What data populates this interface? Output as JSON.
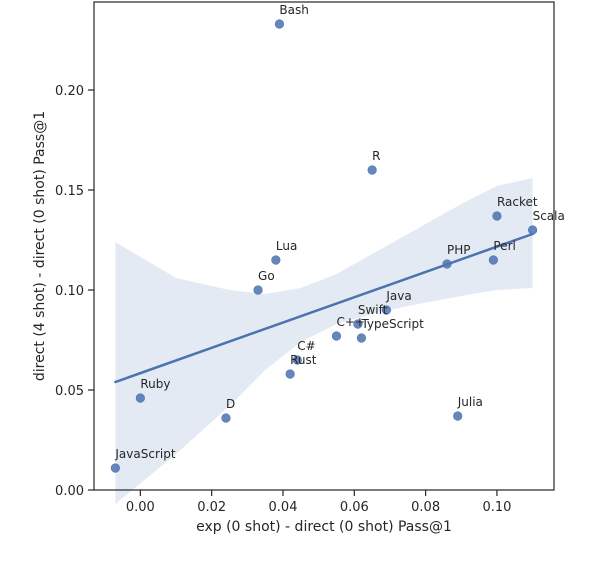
{
  "chart_data": {
    "type": "scatter",
    "xlabel": "exp (0 shot) - direct (0 shot) Pass@1",
    "ylabel": "direct (4 shot) - direct (0 shot) Pass@1",
    "xlim": [
      -0.013,
      0.116
    ],
    "ylim": [
      0.0,
      0.244
    ],
    "xticks": [
      0.0,
      0.02,
      0.04,
      0.06,
      0.08,
      0.1
    ],
    "xtick_labels": [
      "0.00",
      "0.02",
      "0.04",
      "0.06",
      "0.08",
      "0.10"
    ],
    "yticks": [
      0.0,
      0.05,
      0.1,
      0.15,
      0.2
    ],
    "ytick_labels": [
      "0.00",
      "0.05",
      "0.10",
      "0.15",
      "0.20"
    ],
    "grid": false,
    "point_color": "#4c72b0",
    "regression": {
      "x_start": -0.007,
      "y_start": 0.054,
      "x_end": 0.11,
      "y_end": 0.128,
      "line_color": "#4c72b0",
      "band_color": "#4c72b0",
      "band": [
        {
          "x": -0.007,
          "lo": -0.007,
          "hi": 0.124
        },
        {
          "x": 0.01,
          "lo": 0.018,
          "hi": 0.106
        },
        {
          "x": 0.025,
          "lo": 0.042,
          "hi": 0.1
        },
        {
          "x": 0.035,
          "lo": 0.06,
          "hi": 0.098
        },
        {
          "x": 0.045,
          "lo": 0.074,
          "hi": 0.101
        },
        {
          "x": 0.055,
          "lo": 0.083,
          "hi": 0.108
        },
        {
          "x": 0.065,
          "lo": 0.088,
          "hi": 0.118
        },
        {
          "x": 0.075,
          "lo": 0.092,
          "hi": 0.128
        },
        {
          "x": 0.09,
          "lo": 0.097,
          "hi": 0.143
        },
        {
          "x": 0.1,
          "lo": 0.1,
          "hi": 0.152
        },
        {
          "x": 0.11,
          "lo": 0.101,
          "hi": 0.156
        }
      ]
    },
    "points": [
      {
        "label": "Bash",
        "x": 0.039,
        "y": 0.233
      },
      {
        "label": "R",
        "x": 0.065,
        "y": 0.16
      },
      {
        "label": "Racket",
        "x": 0.1,
        "y": 0.137
      },
      {
        "label": "Scala",
        "x": 0.11,
        "y": 0.13
      },
      {
        "label": "Lua",
        "x": 0.038,
        "y": 0.115
      },
      {
        "label": "PHP",
        "x": 0.086,
        "y": 0.113
      },
      {
        "label": "Perl",
        "x": 0.099,
        "y": 0.115
      },
      {
        "label": "Go",
        "x": 0.033,
        "y": 0.1
      },
      {
        "label": "Java",
        "x": 0.069,
        "y": 0.09
      },
      {
        "label": "Swift",
        "x": 0.061,
        "y": 0.083
      },
      {
        "label": "C++",
        "x": 0.055,
        "y": 0.077
      },
      {
        "label": "TypeScript",
        "x": 0.062,
        "y": 0.076
      },
      {
        "label": "C#",
        "x": 0.044,
        "y": 0.065
      },
      {
        "label": "Rust",
        "x": 0.042,
        "y": 0.058
      },
      {
        "label": "Ruby",
        "x": 0.0,
        "y": 0.046
      },
      {
        "label": "D",
        "x": 0.024,
        "y": 0.036
      },
      {
        "label": "Julia",
        "x": 0.089,
        "y": 0.037
      },
      {
        "label": "JavaScript",
        "x": -0.007,
        "y": 0.011
      }
    ]
  }
}
